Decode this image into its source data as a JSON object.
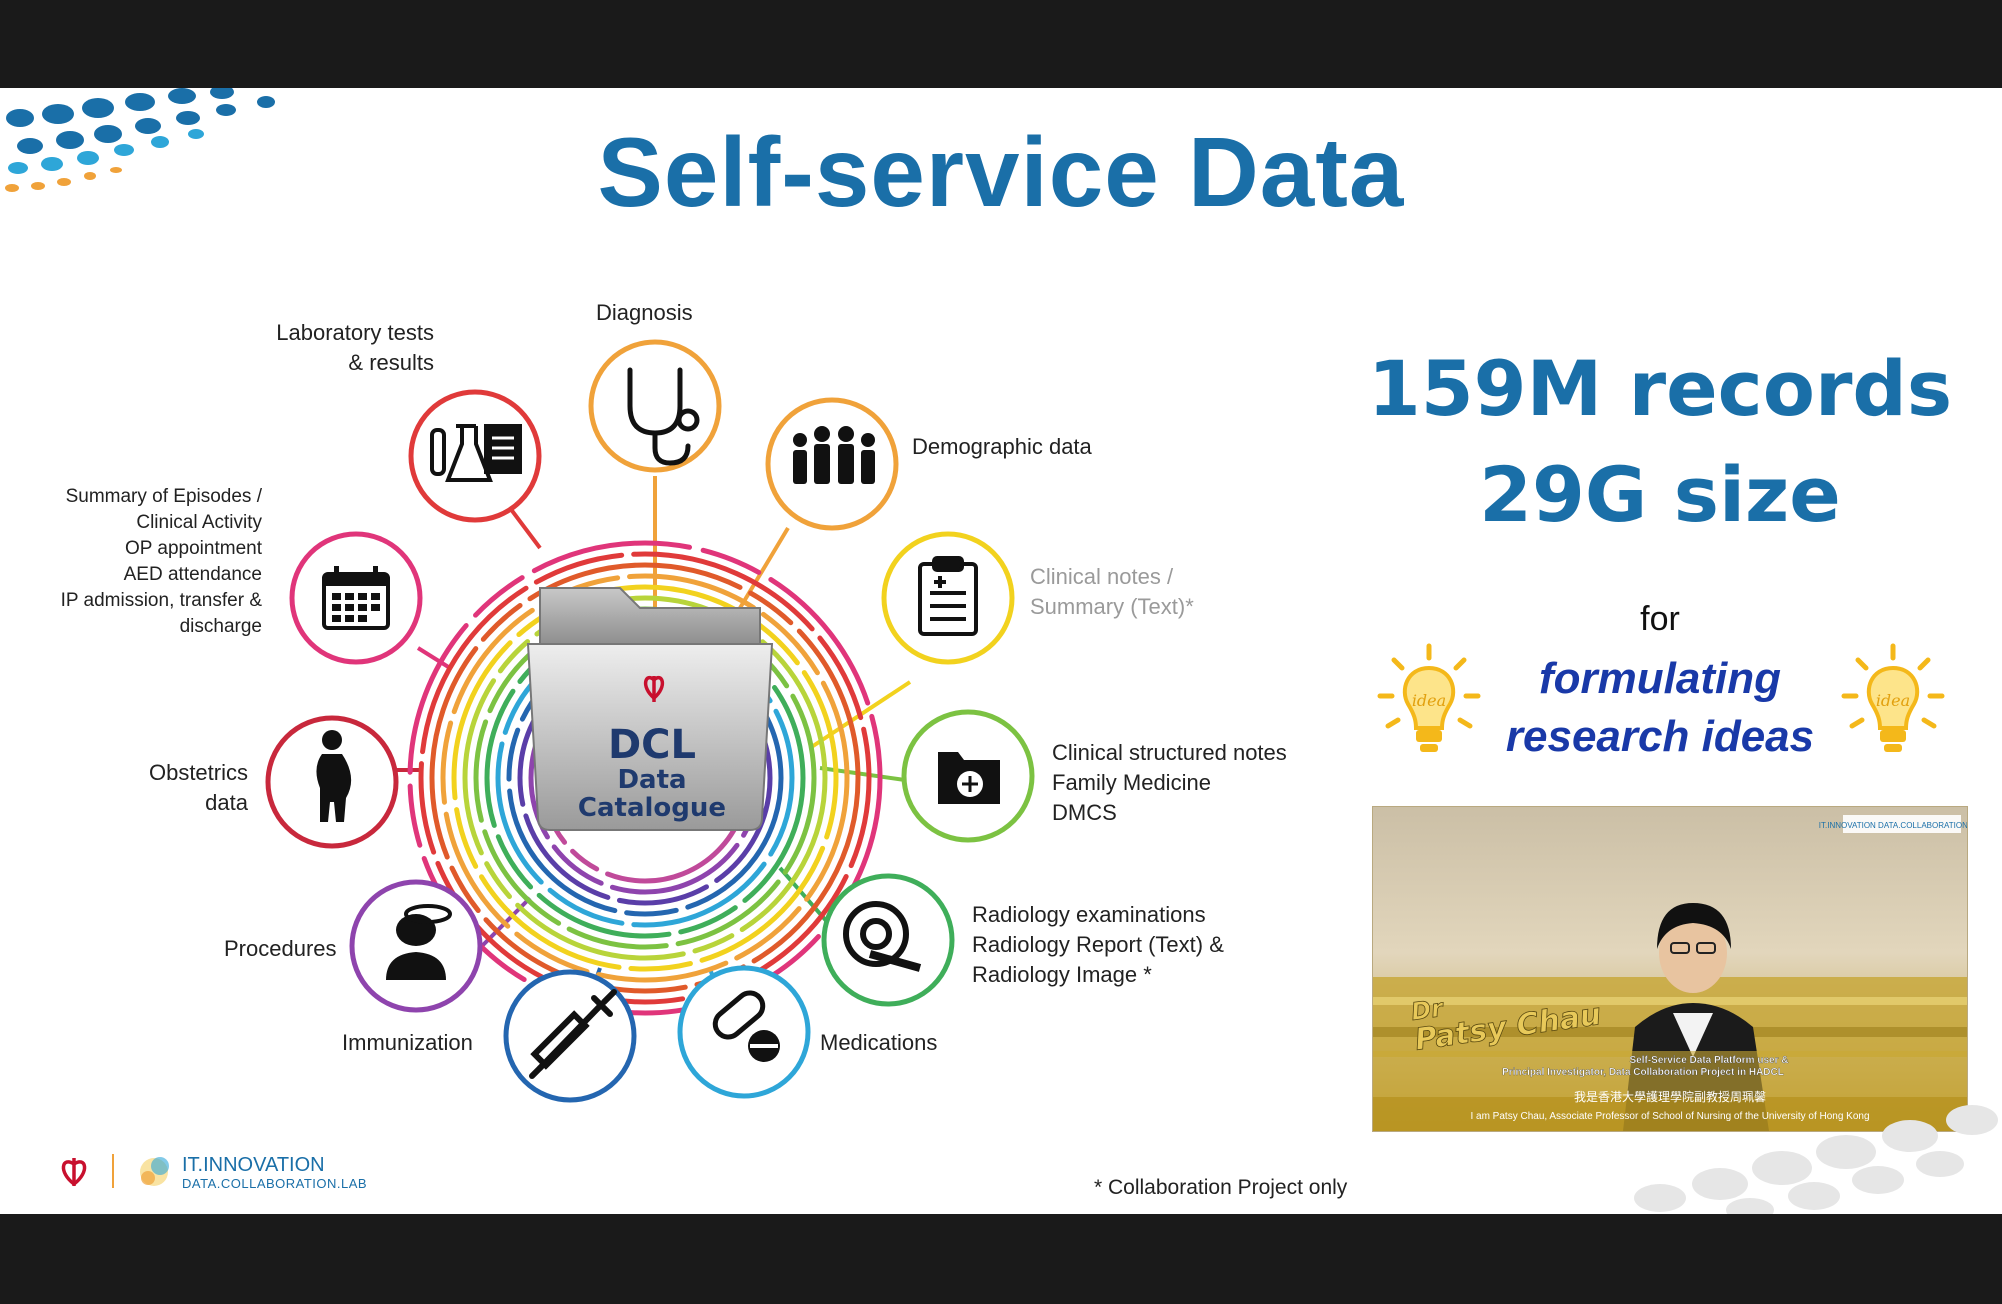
{
  "slide": {
    "title": "Self-service Data",
    "center": {
      "line1": "DCL",
      "line2": "Data",
      "line3": "Catalogue"
    },
    "categories": [
      {
        "id": "diagnosis",
        "label": "Diagnosis",
        "icon": "stethoscope-icon",
        "color": "#f0a23a"
      },
      {
        "id": "demographic",
        "label": "Demographic data",
        "icon": "people-icon",
        "color": "#f0a23a"
      },
      {
        "id": "clinical-notes",
        "line1": "Clinical notes /",
        "line2": "Summary (Text)*",
        "icon": "clipboard-icon",
        "color": "#f2d21e"
      },
      {
        "id": "structured-notes",
        "line1": "Clinical structured notes",
        "line2": "Family Medicine",
        "line3": "DMCS",
        "icon": "folder-plus-icon",
        "color": "#7cc242"
      },
      {
        "id": "radiology",
        "line1": "Radiology examinations",
        "line2": "Radiology Report (Text) &",
        "line3": "Radiology Image *",
        "icon": "ct-scanner-icon",
        "color": "#3fae5a"
      },
      {
        "id": "medications",
        "label": "Medications",
        "icon": "pill-icon",
        "color": "#2ea6d8"
      },
      {
        "id": "immunization",
        "label": "Immunization",
        "icon": "syringe-icon",
        "color": "#2466b0"
      },
      {
        "id": "procedures",
        "label": "Procedures",
        "icon": "surgeon-icon",
        "color": "#8e44ad"
      },
      {
        "id": "obstetrics",
        "line1": "Obstetrics",
        "line2": "data",
        "icon": "pregnant-icon",
        "color": "#c8283c"
      },
      {
        "id": "episodes",
        "line1": "Summary of Episodes /",
        "line2": "Clinical Activity",
        "line3": "OP appointment",
        "line4": "AED attendance",
        "line5": "IP admission, transfer &",
        "line6": "discharge",
        "icon": "calendar-icon",
        "color": "#e0357a"
      },
      {
        "id": "lab",
        "line1": "Laboratory tests",
        "line2": "& results",
        "icon": "lab-flask-icon",
        "color": "#e03a3a"
      }
    ],
    "stats": {
      "records": "159M records",
      "size": "29G size"
    },
    "for_text": "for",
    "research": {
      "line1": "formulating",
      "line2": "research ideas"
    },
    "idea_label": "idea",
    "footnote": "* Collaboration Project only",
    "logo": {
      "line1": "IT.INNOVATION",
      "line2": "DATA.COLLABORATION.LAB"
    }
  },
  "video": {
    "logo": "IT.INNOVATION DATA.COLLABORATION.LAB",
    "name_line1": "Dr",
    "name_line2": "Patsy Chau",
    "role_line1": "Self-Service Data Platform user &",
    "role_line2": "Principal Investigator, Data Collaboration Project in HADCL",
    "caption_zh": "我是香港大學護理學院副教授周珮馨",
    "caption_en": "I am Patsy Chau, Associate Professor of School of Nursing of the University of Hong Kong"
  }
}
